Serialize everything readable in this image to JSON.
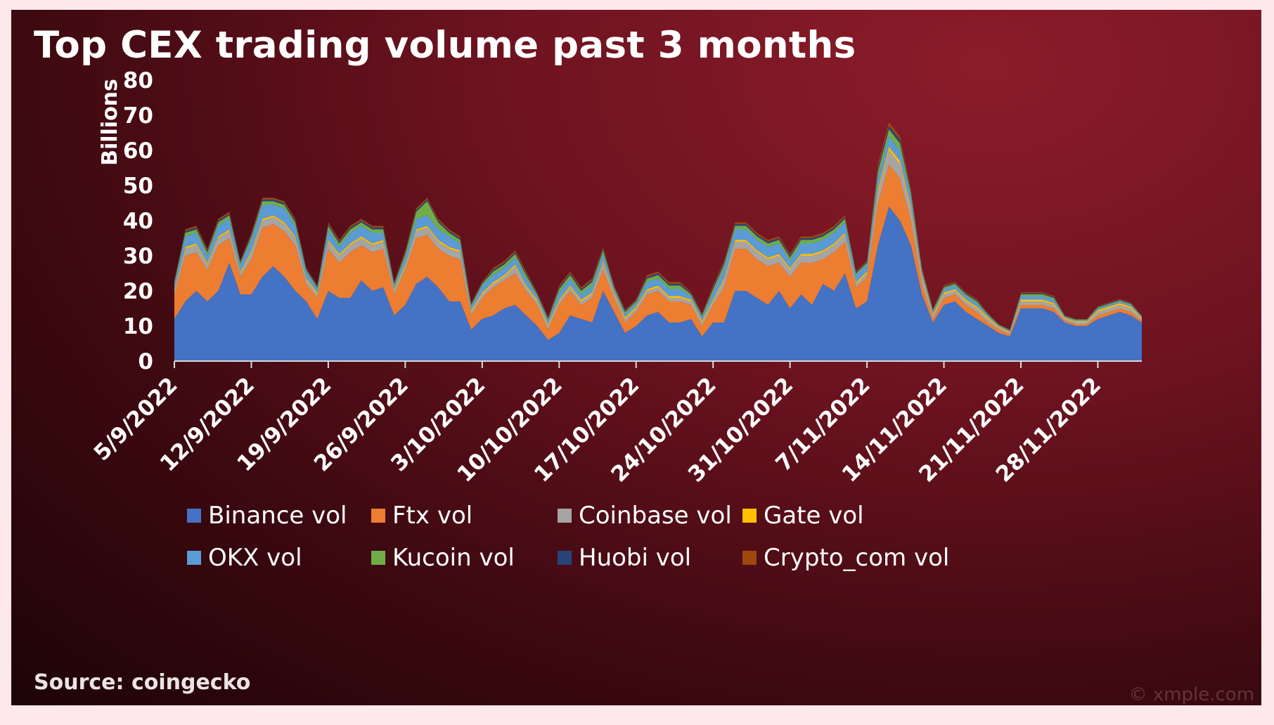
{
  "title": "Top CEX trading volume past 3 months",
  "source": "Source: coingecko",
  "watermark": "© xmple.com",
  "chart_data": {
    "type": "area",
    "stacked": true,
    "title": "Top CEX trading volume past 3 months",
    "ylabel": "Billions",
    "xlabel": "",
    "ylim": [
      0,
      80
    ],
    "y_ticks": [
      0,
      10,
      20,
      30,
      40,
      50,
      60,
      70,
      80
    ],
    "x_tick_labels": [
      "5/9/2022",
      "12/9/2022",
      "19/9/2022",
      "26/9/2022",
      "3/10/2022",
      "10/10/2022",
      "17/10/2022",
      "24/10/2022",
      "31/10/2022",
      "7/11/2022",
      "14/11/2022",
      "21/11/2022",
      "28/11/2022"
    ],
    "x_start": "5/9/2022",
    "legend_position": "bottom",
    "grid": false,
    "series": [
      {
        "name": "Binance vol",
        "color": "#4472c4",
        "values": [
          12,
          17,
          20,
          17,
          20,
          28,
          19,
          19,
          24,
          27,
          24,
          20,
          17,
          12,
          20,
          18,
          18,
          23,
          20,
          21,
          13,
          16,
          22,
          24,
          21,
          17,
          17,
          9,
          12,
          13,
          15,
          16,
          13,
          10,
          6,
          8,
          13,
          12,
          11,
          20,
          14,
          8,
          10,
          13,
          14,
          11,
          11,
          12,
          7,
          11,
          11,
          20,
          20,
          18,
          16,
          20,
          15,
          19,
          16,
          22,
          20,
          25,
          15,
          17,
          33,
          44,
          40,
          33,
          19,
          11,
          16,
          17,
          14,
          12,
          10,
          8,
          7,
          15,
          15,
          15,
          14,
          11,
          10,
          10,
          12,
          13,
          14,
          13,
          11
        ]
      },
      {
        "name": "Ftx vol",
        "color": "#ed7d31",
        "values": [
          7,
          13,
          11,
          9,
          13,
          7,
          5,
          10,
          14,
          12,
          13,
          13,
          5,
          6,
          12,
          10,
          13,
          10,
          11,
          11,
          6,
          10,
          13,
          12,
          11,
          13,
          12,
          4,
          6,
          8,
          8,
          9,
          7,
          6,
          3,
          8,
          7,
          4,
          7,
          6,
          4,
          3,
          4,
          6,
          6,
          6,
          6,
          4,
          3,
          5,
          10,
          12,
          12,
          11,
          11,
          8,
          9,
          9,
          12,
          7,
          11,
          9,
          6,
          7,
          12,
          12,
          12,
          7,
          3,
          1,
          2,
          2,
          2,
          2,
          1,
          1,
          0.5,
          1,
          1,
          1,
          1,
          0.5,
          0.5,
          0.5,
          1,
          1,
          1,
          1,
          0.5
        ]
      },
      {
        "name": "Coinbase vol",
        "color": "#a5a5a5",
        "values": [
          1,
          2,
          2,
          1.5,
          2,
          2,
          1,
          2,
          2,
          2,
          2,
          2,
          1,
          1,
          2,
          2,
          2,
          2,
          2,
          2,
          1,
          1,
          2,
          2,
          2,
          2,
          2,
          1,
          1,
          1,
          1,
          2,
          1,
          1,
          1,
          1,
          1,
          1,
          1,
          2,
          1,
          1,
          1,
          1,
          1,
          1,
          1,
          1,
          1,
          1,
          2,
          2,
          2,
          2,
          2,
          2,
          2,
          2,
          2,
          2,
          2,
          2,
          1,
          1,
          3,
          4,
          4,
          3,
          2,
          1,
          1,
          1,
          1,
          1,
          1,
          0.5,
          0.5,
          1,
          1,
          1,
          1,
          0.5,
          0.5,
          0.5,
          1,
          1,
          1,
          1,
          0.5
        ]
      },
      {
        "name": "Gate vol",
        "color": "#ffc000",
        "values": [
          0.5,
          0.5,
          0.5,
          0.5,
          0.5,
          0.5,
          0.5,
          0.5,
          0.5,
          0.5,
          0.5,
          0.5,
          0.5,
          0.5,
          0.5,
          0.5,
          0.5,
          0.5,
          0.5,
          0.5,
          0.5,
          0.5,
          0.5,
          0.5,
          0.5,
          0.5,
          0.5,
          0.5,
          0.5,
          0.5,
          0.5,
          0.5,
          0.5,
          0.5,
          0.5,
          0.5,
          0.5,
          0.5,
          0.5,
          0.5,
          0.5,
          0.5,
          0.5,
          0.5,
          0.5,
          0.5,
          0.5,
          0.5,
          0.5,
          0.5,
          0.5,
          0.5,
          0.5,
          0.5,
          0.5,
          0.5,
          0.5,
          0.5,
          0.5,
          0.5,
          0.5,
          0.5,
          0.5,
          0.5,
          1,
          1,
          1,
          1,
          0.5,
          0.5,
          0.5,
          0.5,
          0.5,
          0.5,
          0.5,
          0.3,
          0.3,
          0.5,
          0.5,
          0.5,
          0.5,
          0.3,
          0.3,
          0.3,
          0.5,
          0.5,
          0.5,
          0.5,
          0.3
        ]
      },
      {
        "name": "OKX vol",
        "color": "#5b9bd5",
        "values": [
          1.5,
          3,
          3,
          2,
          3,
          3,
          2,
          3,
          4,
          3,
          4,
          3,
          2,
          1,
          3,
          2,
          3,
          3,
          3,
          2,
          1,
          2,
          3,
          3,
          3,
          3,
          2,
          1,
          2,
          2,
          2,
          2,
          2,
          1,
          1,
          2,
          2,
          1.5,
          2,
          2,
          1,
          1,
          1,
          2,
          2,
          2,
          2,
          1,
          1,
          2,
          3,
          3,
          3,
          3,
          3,
          3,
          2,
          3,
          3,
          3,
          3,
          3,
          2,
          2,
          3,
          3,
          3,
          3,
          1,
          0.5,
          1,
          1,
          1,
          1,
          0.5,
          0.3,
          0.3,
          1,
          1,
          1,
          1,
          0.3,
          0.3,
          0.3,
          0.5,
          0.5,
          0.5,
          0.5,
          0.3
        ]
      },
      {
        "name": "Kucoin vol",
        "color": "#70ad47",
        "values": [
          0.5,
          1,
          1,
          1,
          1,
          1,
          0.5,
          1,
          1,
          1,
          1,
          1,
          0.5,
          0.5,
          1,
          1,
          1,
          1,
          1,
          1,
          0.5,
          1,
          2,
          4,
          2,
          1,
          1,
          0.5,
          0.5,
          1,
          1,
          1,
          1,
          0.5,
          0.5,
          1,
          1,
          1,
          1,
          1,
          0.5,
          0.5,
          0.5,
          1,
          1,
          1,
          1,
          0.5,
          0.5,
          1,
          1,
          1,
          1,
          1,
          1,
          1,
          1,
          1,
          1,
          1,
          1,
          1,
          0.5,
          0.5,
          2,
          2,
          2,
          1,
          0.5,
          0.5,
          0.5,
          0.5,
          0.5,
          0.5,
          0.3,
          0.2,
          0.2,
          0.5,
          0.5,
          0.5,
          0.5,
          0.2,
          0.2,
          0.2,
          0.3,
          0.3,
          0.3,
          0.3,
          0.2
        ]
      },
      {
        "name": "Huobi vol",
        "color": "#264478",
        "values": [
          0.3,
          0.5,
          0.5,
          0.5,
          0.5,
          0.5,
          0.3,
          0.5,
          0.5,
          0.5,
          0.5,
          0.5,
          0.3,
          0.3,
          0.5,
          0.5,
          0.5,
          0.5,
          0.5,
          0.5,
          0.3,
          0.5,
          0.5,
          0.5,
          0.5,
          0.5,
          0.5,
          0.3,
          0.3,
          0.5,
          0.5,
          0.5,
          0.5,
          0.3,
          0.3,
          0.5,
          0.5,
          0.5,
          0.5,
          0.5,
          0.3,
          0.3,
          0.3,
          0.5,
          0.5,
          0.5,
          0.5,
          0.3,
          0.3,
          0.5,
          0.5,
          0.5,
          0.5,
          0.5,
          0.5,
          0.5,
          0.5,
          0.5,
          0.5,
          0.5,
          0.5,
          0.5,
          0.3,
          0.3,
          1,
          1,
          1,
          0.5,
          0.3,
          0.2,
          0.3,
          0.3,
          0.3,
          0.3,
          0.2,
          0.1,
          0.1,
          0.3,
          0.3,
          0.3,
          0.3,
          0.1,
          0.1,
          0.1,
          0.2,
          0.2,
          0.2,
          0.2,
          0.1
        ]
      },
      {
        "name": "Crypto_com vol",
        "color": "#9e480e",
        "values": [
          0.3,
          0.5,
          0.5,
          0.5,
          0.5,
          0.5,
          0.3,
          0.5,
          0.5,
          0.5,
          0.5,
          0.5,
          0.3,
          0.3,
          0.5,
          0.5,
          0.5,
          0.5,
          0.5,
          0.5,
          0.3,
          0.5,
          0.5,
          0.5,
          0.5,
          0.5,
          0.5,
          0.3,
          0.3,
          0.5,
          0.5,
          0.5,
          0.5,
          0.3,
          0.3,
          0.5,
          0.5,
          0.5,
          0.5,
          0.5,
          0.3,
          0.3,
          0.3,
          0.5,
          0.5,
          0.5,
          0.5,
          0.3,
          0.3,
          0.5,
          0.5,
          0.5,
          0.5,
          0.5,
          0.5,
          0.5,
          0.5,
          0.5,
          0.5,
          0.5,
          0.5,
          0.5,
          0.3,
          0.3,
          1,
          1,
          1,
          0.5,
          0.3,
          0.2,
          0.3,
          0.3,
          0.3,
          0.3,
          0.2,
          0.1,
          0.1,
          0.3,
          0.3,
          0.3,
          0.3,
          0.1,
          0.1,
          0.1,
          0.2,
          0.2,
          0.2,
          0.2,
          0.1
        ]
      }
    ]
  }
}
